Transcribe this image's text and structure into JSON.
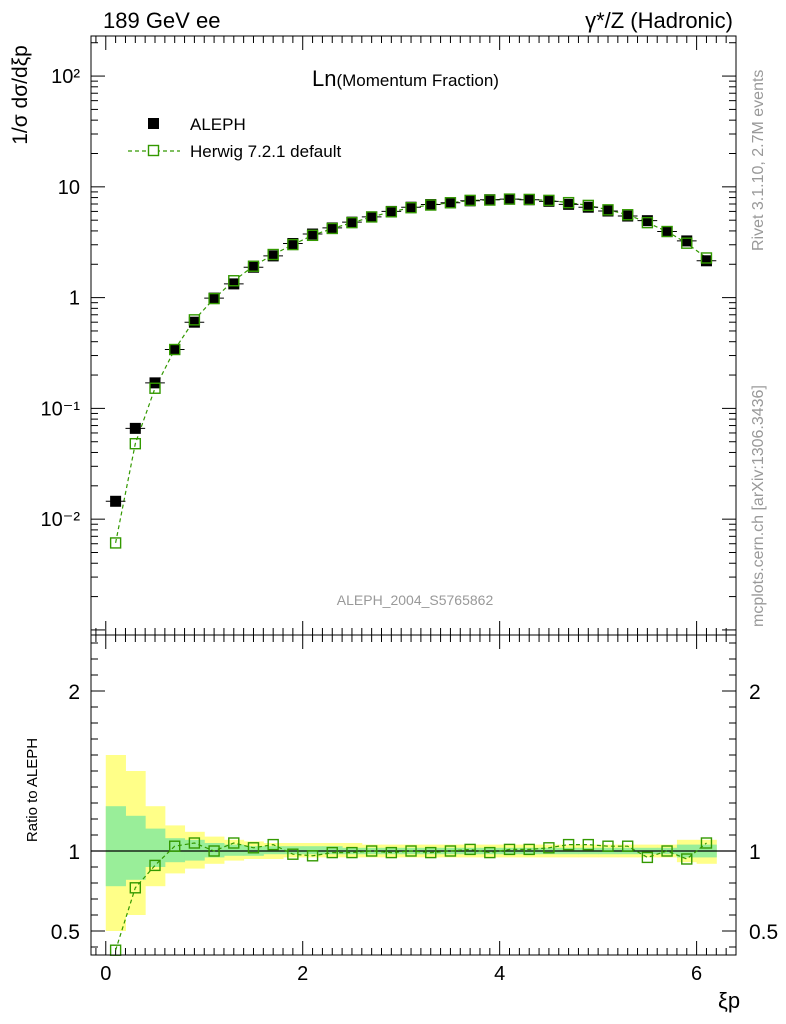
{
  "header": {
    "left": "189 GeV ee",
    "right": "γ*/Z (Hadronic)"
  },
  "main_panel": {
    "title_main": "Ln",
    "title_sub": "(Momentum Fraction)",
    "ylabel": "1/σ dσ/dξp",
    "analysis_id": "ALEPH_2004_S5765862",
    "ytick_labels": [
      {
        "value": 100,
        "label": "10²"
      },
      {
        "value": 10,
        "label": "10"
      },
      {
        "value": 1,
        "label": "1"
      },
      {
        "value": 0.1,
        "label": "10⁻¹"
      },
      {
        "value": 0.01,
        "label": "10⁻²"
      }
    ]
  },
  "legend": {
    "data_label": "ALEPH",
    "mc_label": "Herwig 7.2.1 default"
  },
  "side_text": {
    "rivet": "Rivet 3.1.10,  2.7M events",
    "mcplots": "mcplots.cern.ch [arXiv:1306.3436]"
  },
  "ratio_panel": {
    "ylabel": "Ratio to ALEPH",
    "ytick_labels": [
      "2",
      "1",
      "0.5"
    ]
  },
  "xaxis": {
    "label": "ξp",
    "tick_labels": [
      "0",
      "2",
      "4",
      "6"
    ]
  },
  "colors": {
    "data": "#000000",
    "mc": "#339900",
    "band_inner": "#99ee99",
    "band_outer": "#ffff88"
  },
  "chart_data": {
    "type": "scatter",
    "log_y": true,
    "xlim": [
      -0.15,
      6.4
    ],
    "ylim": [
      0.0009,
      230
    ],
    "ratio_ylim": [
      0.35,
      2.35
    ],
    "x": [
      0.1,
      0.3,
      0.5,
      0.7,
      0.9,
      1.1,
      1.3,
      1.5,
      1.7,
      1.9,
      2.1,
      2.3,
      2.5,
      2.7,
      2.9,
      3.1,
      3.3,
      3.5,
      3.7,
      3.9,
      4.1,
      4.3,
      4.5,
      4.7,
      4.9,
      5.1,
      5.3,
      5.5,
      5.7,
      5.9,
      6.1
    ],
    "series": [
      {
        "name": "ALEPH",
        "values": [
          0.0145,
          0.066,
          0.17,
          0.34,
          0.6,
          0.99,
          1.33,
          1.88,
          2.38,
          3.08,
          3.75,
          4.26,
          4.8,
          5.35,
          6.0,
          6.55,
          6.92,
          7.18,
          7.48,
          7.65,
          7.75,
          7.65,
          7.4,
          6.95,
          6.55,
          6.05,
          5.45,
          4.95,
          3.95,
          3.25,
          2.15
        ]
      },
      {
        "name": "Herwig 7.2.1 default",
        "values": [
          0.0061,
          0.048,
          0.152,
          0.34,
          0.63,
          0.98,
          1.42,
          1.92,
          2.45,
          3.01,
          3.65,
          4.21,
          4.75,
          5.35,
          5.95,
          6.48,
          6.85,
          7.18,
          7.55,
          7.6,
          7.75,
          7.7,
          7.55,
          7.2,
          6.8,
          6.2,
          5.6,
          4.75,
          3.95,
          3.1,
          2.28
        ]
      }
    ],
    "ratio": {
      "x": [
        0.1,
        0.3,
        0.5,
        0.7,
        0.9,
        1.1,
        1.3,
        1.5,
        1.7,
        1.9,
        2.1,
        2.3,
        2.5,
        2.7,
        2.9,
        3.1,
        3.3,
        3.5,
        3.7,
        3.9,
        4.1,
        4.3,
        4.5,
        4.7,
        4.9,
        5.1,
        5.3,
        5.5,
        5.7,
        5.9,
        6.1
      ],
      "values": [
        0.38,
        0.77,
        0.91,
        1.03,
        1.05,
        1.0,
        1.05,
        1.02,
        1.04,
        0.98,
        0.97,
        0.99,
        0.99,
        1.0,
        0.99,
        1.0,
        0.99,
        1.0,
        1.01,
        0.99,
        1.01,
        1.01,
        1.02,
        1.04,
        1.04,
        1.03,
        1.03,
        0.96,
        1.0,
        0.95,
        1.05
      ],
      "band_inner": [
        [
          0.78,
          1.28
        ],
        [
          0.82,
          1.22
        ],
        [
          0.9,
          1.14
        ],
        [
          0.93,
          1.08
        ],
        [
          0.94,
          1.07
        ],
        [
          0.96,
          1.05
        ],
        [
          0.97,
          1.04
        ],
        [
          0.97,
          1.03
        ],
        [
          0.98,
          1.03
        ],
        [
          0.98,
          1.03
        ],
        [
          0.98,
          1.03
        ],
        [
          0.98,
          1.03
        ],
        [
          0.98,
          1.02
        ],
        [
          0.98,
          1.02
        ],
        [
          0.98,
          1.02
        ],
        [
          0.98,
          1.02
        ],
        [
          0.98,
          1.02
        ],
        [
          0.98,
          1.02
        ],
        [
          0.98,
          1.02
        ],
        [
          0.98,
          1.02
        ],
        [
          0.98,
          1.02
        ],
        [
          0.98,
          1.02
        ],
        [
          0.98,
          1.02
        ],
        [
          0.98,
          1.02
        ],
        [
          0.98,
          1.02
        ],
        [
          0.98,
          1.02
        ],
        [
          0.98,
          1.02
        ],
        [
          0.98,
          1.02
        ],
        [
          0.98,
          1.02
        ],
        [
          0.96,
          1.04
        ],
        [
          0.96,
          1.04
        ]
      ],
      "band_outer": [
        [
          0.5,
          1.6
        ],
        [
          0.6,
          1.5
        ],
        [
          0.78,
          1.28
        ],
        [
          0.86,
          1.16
        ],
        [
          0.89,
          1.12
        ],
        [
          0.92,
          1.09
        ],
        [
          0.94,
          1.07
        ],
        [
          0.95,
          1.06
        ],
        [
          0.95,
          1.05
        ],
        [
          0.96,
          1.05
        ],
        [
          0.96,
          1.05
        ],
        [
          0.96,
          1.05
        ],
        [
          0.96,
          1.05
        ],
        [
          0.96,
          1.04
        ],
        [
          0.96,
          1.04
        ],
        [
          0.96,
          1.04
        ],
        [
          0.96,
          1.04
        ],
        [
          0.96,
          1.04
        ],
        [
          0.96,
          1.04
        ],
        [
          0.96,
          1.04
        ],
        [
          0.96,
          1.04
        ],
        [
          0.96,
          1.04
        ],
        [
          0.96,
          1.04
        ],
        [
          0.96,
          1.04
        ],
        [
          0.96,
          1.04
        ],
        [
          0.96,
          1.04
        ],
        [
          0.96,
          1.04
        ],
        [
          0.96,
          1.04
        ],
        [
          0.96,
          1.04
        ],
        [
          0.93,
          1.07
        ],
        [
          0.92,
          1.07
        ]
      ]
    }
  }
}
